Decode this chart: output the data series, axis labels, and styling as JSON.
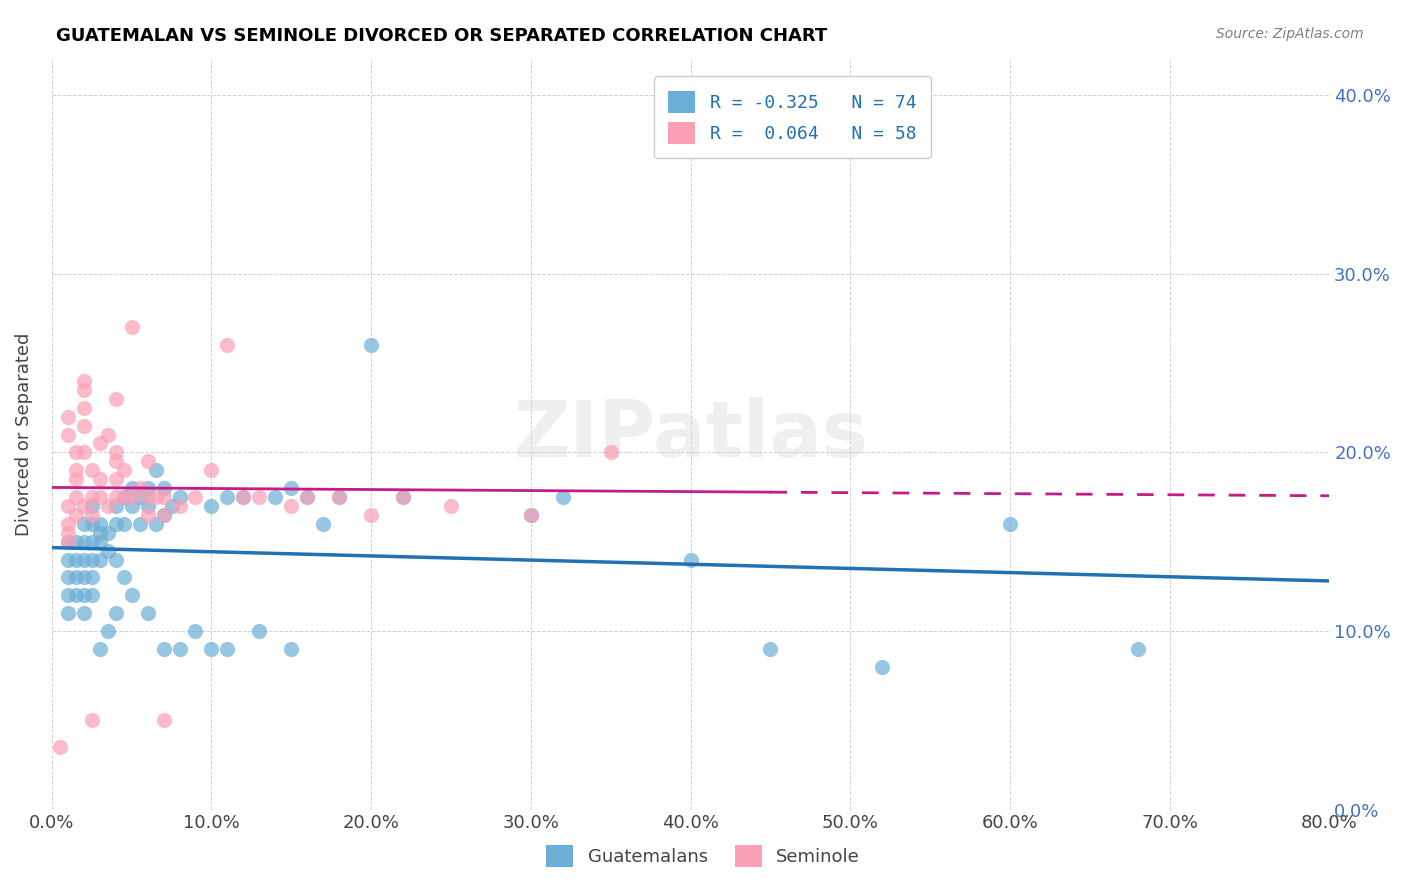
{
  "title": "GUATEMALAN VS SEMINOLE DIVORCED OR SEPARATED CORRELATION CHART",
  "source": "Source: ZipAtlas.com",
  "ylabel": "Divorced or Separated",
  "xlim": [
    0.0,
    0.8
  ],
  "ylim": [
    0.0,
    0.42
  ],
  "legend_label1": "R = -0.325   N = 74",
  "legend_label2": "R =  0.064   N = 58",
  "color_blue": "#6baed6",
  "color_pink": "#fa9fb5",
  "line_color_blue": "#2171b5",
  "line_color_pink": "#c51b8a",
  "guatemalan_x": [
    0.01,
    0.01,
    0.01,
    0.01,
    0.01,
    0.015,
    0.015,
    0.015,
    0.015,
    0.02,
    0.02,
    0.02,
    0.02,
    0.02,
    0.02,
    0.025,
    0.025,
    0.025,
    0.025,
    0.025,
    0.025,
    0.03,
    0.03,
    0.03,
    0.03,
    0.03,
    0.035,
    0.035,
    0.035,
    0.04,
    0.04,
    0.04,
    0.04,
    0.045,
    0.045,
    0.045,
    0.05,
    0.05,
    0.05,
    0.055,
    0.055,
    0.06,
    0.06,
    0.06,
    0.065,
    0.065,
    0.07,
    0.07,
    0.07,
    0.075,
    0.08,
    0.08,
    0.09,
    0.1,
    0.1,
    0.11,
    0.11,
    0.12,
    0.13,
    0.14,
    0.15,
    0.15,
    0.16,
    0.17,
    0.18,
    0.2,
    0.22,
    0.3,
    0.32,
    0.4,
    0.45,
    0.52,
    0.6,
    0.68
  ],
  "guatemalan_y": [
    0.13,
    0.14,
    0.15,
    0.12,
    0.11,
    0.15,
    0.14,
    0.13,
    0.12,
    0.16,
    0.15,
    0.14,
    0.13,
    0.12,
    0.11,
    0.17,
    0.16,
    0.15,
    0.14,
    0.13,
    0.12,
    0.16,
    0.155,
    0.15,
    0.14,
    0.09,
    0.155,
    0.145,
    0.1,
    0.17,
    0.16,
    0.14,
    0.11,
    0.175,
    0.16,
    0.13,
    0.18,
    0.17,
    0.12,
    0.175,
    0.16,
    0.18,
    0.17,
    0.11,
    0.19,
    0.16,
    0.18,
    0.165,
    0.09,
    0.17,
    0.175,
    0.09,
    0.1,
    0.17,
    0.09,
    0.175,
    0.09,
    0.175,
    0.1,
    0.175,
    0.18,
    0.09,
    0.175,
    0.16,
    0.175,
    0.26,
    0.175,
    0.165,
    0.175,
    0.14,
    0.09,
    0.08,
    0.16,
    0.09
  ],
  "seminole_x": [
    0.005,
    0.01,
    0.01,
    0.01,
    0.01,
    0.01,
    0.01,
    0.015,
    0.015,
    0.015,
    0.015,
    0.015,
    0.02,
    0.02,
    0.02,
    0.02,
    0.02,
    0.02,
    0.025,
    0.025,
    0.025,
    0.025,
    0.03,
    0.03,
    0.03,
    0.035,
    0.035,
    0.04,
    0.04,
    0.04,
    0.04,
    0.04,
    0.045,
    0.045,
    0.05,
    0.05,
    0.055,
    0.06,
    0.06,
    0.06,
    0.065,
    0.07,
    0.07,
    0.07,
    0.08,
    0.09,
    0.1,
    0.11,
    0.12,
    0.13,
    0.15,
    0.16,
    0.18,
    0.2,
    0.22,
    0.25,
    0.3,
    0.35
  ],
  "seminole_y": [
    0.035,
    0.17,
    0.16,
    0.155,
    0.15,
    0.22,
    0.21,
    0.2,
    0.19,
    0.185,
    0.175,
    0.165,
    0.24,
    0.235,
    0.225,
    0.215,
    0.2,
    0.17,
    0.19,
    0.175,
    0.165,
    0.05,
    0.205,
    0.185,
    0.175,
    0.21,
    0.17,
    0.23,
    0.2,
    0.195,
    0.185,
    0.175,
    0.19,
    0.175,
    0.27,
    0.175,
    0.18,
    0.195,
    0.175,
    0.165,
    0.175,
    0.175,
    0.165,
    0.05,
    0.17,
    0.175,
    0.19,
    0.26,
    0.175,
    0.175,
    0.17,
    0.175,
    0.175,
    0.165,
    0.175,
    0.17,
    0.165,
    0.2
  ],
  "watermark": "ZIPatlas",
  "figsize": [
    14.06,
    8.92
  ],
  "dpi": 100
}
